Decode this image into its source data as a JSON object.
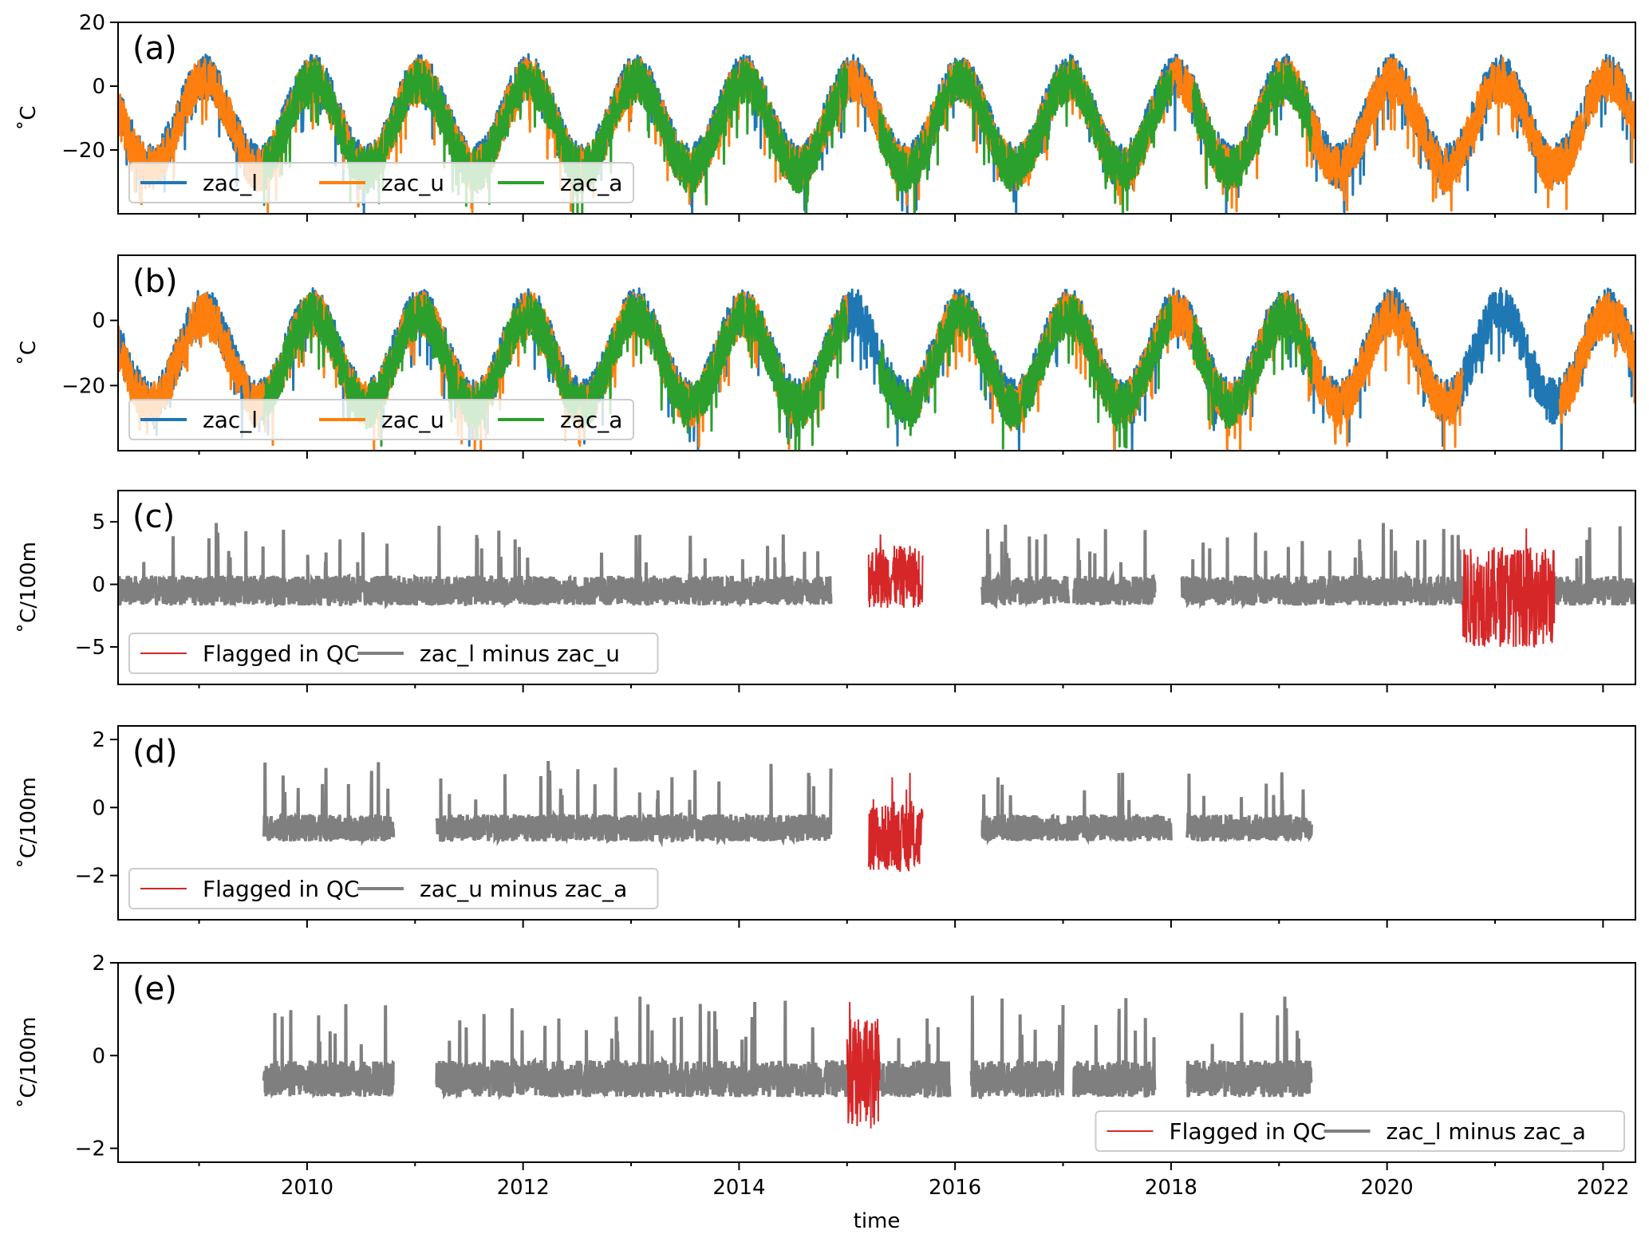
{
  "chart_data": {
    "type": "line",
    "xlabel": "time",
    "xlim": [
      2008.25,
      2022.3
    ],
    "x_ticks": [
      2010,
      2012,
      2014,
      2016,
      2018,
      2020,
      2022
    ],
    "colors": {
      "zac_l": "#1f77b4",
      "zac_u": "#ff7f0e",
      "zac_a": "#2ca02c",
      "flag": "#d62728",
      "diff": "#7f7f7f"
    },
    "panels": [
      {
        "label": "(a)",
        "ylabel": "˚C",
        "ylim": [
          -40,
          20
        ],
        "yticks": [
          -20,
          0,
          20
        ],
        "legend": {
          "placement": "lower-left",
          "entries": [
            "zac_l",
            "zac_u",
            "zac_a"
          ]
        },
        "series": [
          {
            "name": "zac_l",
            "color": "#1f77b4",
            "segments": [
              [
                2008.25,
                2022.3
              ]
            ]
          },
          {
            "name": "zac_u",
            "color": "#ff7f0e",
            "segments": [
              [
                2008.25,
                2022.3
              ]
            ]
          },
          {
            "name": "zac_a",
            "color": "#2ca02c",
            "segments": [
              [
                2009.6,
                2015.0
              ],
              [
                2015.3,
                2018.0
              ],
              [
                2018.2,
                2019.3
              ]
            ]
          }
        ]
      },
      {
        "label": "(b)",
        "ylabel": "˚C",
        "ylim": [
          -40,
          20
        ],
        "yticks": [
          -20,
          0
        ],
        "legend": {
          "placement": "lower-left",
          "entries": [
            "zac_l",
            "zac_u",
            "zac_a"
          ]
        },
        "series": [
          {
            "name": "zac_l",
            "color": "#1f77b4",
            "segments": [
              [
                2008.25,
                2022.3
              ]
            ]
          },
          {
            "name": "zac_u",
            "color": "#ff7f0e",
            "segments": [
              [
                2008.25,
                2015.0
              ],
              [
                2015.6,
                2020.7
              ],
              [
                2021.6,
                2022.3
              ]
            ]
          },
          {
            "name": "zac_a",
            "color": "#2ca02c",
            "segments": [
              [
                2009.6,
                2015.0
              ],
              [
                2015.3,
                2018.0
              ],
              [
                2018.2,
                2019.3
              ]
            ]
          }
        ]
      },
      {
        "label": "(c)",
        "ylabel": "˚C/100m",
        "ylim": [
          -8,
          7.5
        ],
        "yticks": [
          -5,
          0,
          5
        ],
        "legend": {
          "placement": "lower-left",
          "entries": [
            "Flagged in QC",
            "zac_l minus zac_u"
          ]
        },
        "diff_name": "zac_l minus zac_u",
        "valid": [
          [
            2008.25,
            2014.85
          ],
          [
            2016.25,
            2017.05
          ],
          [
            2017.1,
            2017.85
          ],
          [
            2018.1,
            2020.7
          ],
          [
            2021.55,
            2022.3
          ]
        ],
        "flagged": [
          [
            2015.2,
            2015.7
          ],
          [
            2020.7,
            2021.55
          ]
        ],
        "ranges": {
          "mean": -0.5,
          "spread": 1.2,
          "spike_max": 5.5,
          "flag_mean": 0.6,
          "flag_spread": 2.5,
          "flag_mean_2": -1.0,
          "flag_spread_2": 4.0
        }
      },
      {
        "label": "(d)",
        "ylabel": "˚C/100m",
        "ylim": [
          -3.3,
          2.4
        ],
        "yticks": [
          -2,
          0,
          2
        ],
        "legend": {
          "placement": "lower-left",
          "entries": [
            "Flagged in QC",
            "zac_u minus zac_a"
          ]
        },
        "diff_name": "zac_u minus zac_a",
        "valid": [
          [
            2009.6,
            2010.8
          ],
          [
            2011.2,
            2014.85
          ],
          [
            2016.25,
            2018.0
          ],
          [
            2018.15,
            2019.3
          ]
        ],
        "flagged": [
          [
            2015.2,
            2015.7
          ]
        ],
        "ranges": {
          "mean": -0.6,
          "spread": 0.4,
          "spike_max": 2.0,
          "flag_mean": -0.9,
          "flag_spread": 1.0
        }
      },
      {
        "label": "(e)",
        "ylabel": "˚C/100m",
        "ylim": [
          -2.3,
          2.0
        ],
        "yticks": [
          -2,
          0,
          2
        ],
        "legend": {
          "placement": "lower-right",
          "entries": [
            "Flagged in QC",
            "zac_l minus zac_a"
          ]
        },
        "diff_name": "zac_l minus zac_a",
        "valid": [
          [
            2009.6,
            2010.8
          ],
          [
            2011.2,
            2015.0
          ],
          [
            2015.3,
            2015.95
          ],
          [
            2016.15,
            2017.0
          ],
          [
            2017.1,
            2017.85
          ],
          [
            2018.15,
            2019.3
          ]
        ],
        "flagged": [
          [
            2015.0,
            2015.3
          ]
        ],
        "ranges": {
          "mean": -0.5,
          "spread": 0.4,
          "spike_max": 1.8,
          "flag_mean": -0.4,
          "flag_spread": 1.2
        }
      }
    ]
  }
}
